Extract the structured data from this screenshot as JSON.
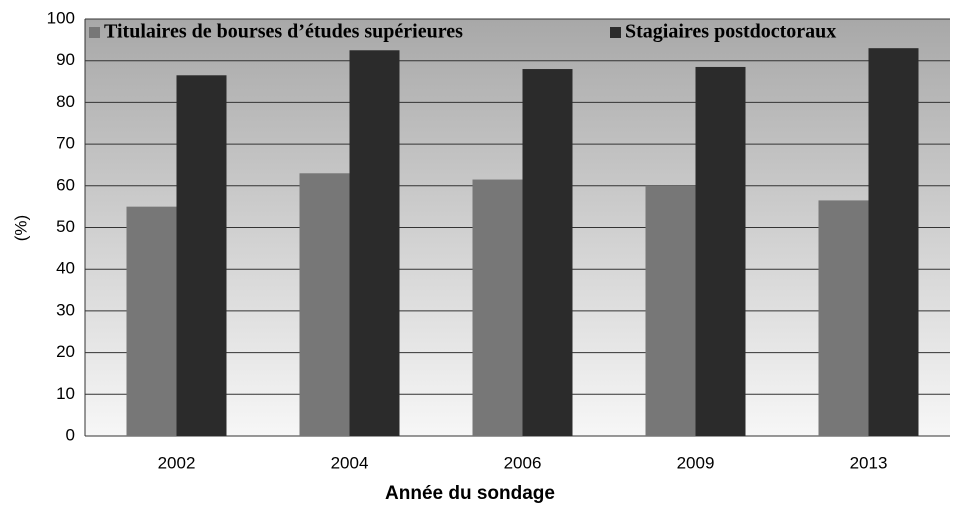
{
  "chart_data": {
    "type": "bar",
    "categories": [
      "2002",
      "2004",
      "2006",
      "2009",
      "2013"
    ],
    "series": [
      {
        "name": "Titulaires de bourses d’études supérieures",
        "color": "#777777",
        "values": [
          55,
          63,
          61.5,
          60,
          56.5
        ]
      },
      {
        "name": "Stagiaires postdoctoraux",
        "color": "#2b2b2b",
        "values": [
          86.5,
          92.5,
          88,
          88.5,
          93
        ]
      }
    ],
    "xlabel": "Année du sondage",
    "ylabel": "(%)",
    "ylim": [
      0,
      100
    ],
    "yticks": [
      0,
      10,
      20,
      30,
      40,
      50,
      60,
      70,
      80,
      90,
      100
    ],
    "grid": true,
    "legend": "top"
  }
}
